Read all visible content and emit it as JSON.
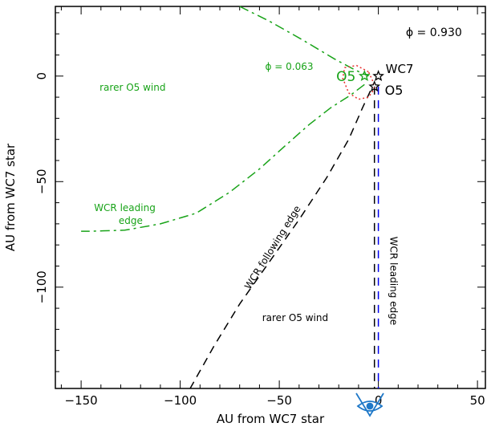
{
  "chart_data": {
    "type": "line",
    "title": "",
    "xlabel": "AU from WC7 star",
    "ylabel": "AU from WC7 star",
    "xlim": [
      -163,
      54
    ],
    "ylim": [
      -148,
      33
    ],
    "xticks": [
      -150,
      -100,
      -50,
      0,
      50
    ],
    "yticks": [
      0,
      -50,
      -100
    ],
    "tick_labels": {
      "x": [
        "−150",
        "−100",
        "−50",
        "0",
        "50"
      ],
      "y": [
        "0",
        "−50",
        "−100"
      ]
    },
    "grid": false,
    "series": [
      {
        "style": "dash-dot",
        "color": "#18a318",
        "points": [
          [
            -70,
            33
          ],
          [
            -55,
            26
          ],
          [
            -38,
            17
          ],
          [
            -22,
            8
          ],
          [
            -12,
            3
          ],
          [
            -5,
            0
          ]
        ]
      },
      {
        "style": "dash-dot",
        "color": "#18a318",
        "points": [
          [
            -7,
            -4
          ],
          [
            -14,
            -9
          ],
          [
            -24,
            -15
          ],
          [
            -35,
            -23
          ],
          [
            -47,
            -33
          ],
          [
            -60,
            -44
          ],
          [
            -75,
            -55
          ],
          [
            -92,
            -65
          ],
          [
            -110,
            -70
          ],
          [
            -128,
            -73
          ],
          [
            -145,
            -73.5
          ],
          [
            -150,
            -73.5
          ]
        ]
      },
      {
        "style": "dashed",
        "color": "#000000",
        "points": [
          [
            -4,
            -7
          ],
          [
            -8,
            -15
          ],
          [
            -15,
            -30
          ],
          [
            -26,
            -48
          ],
          [
            -40,
            -68
          ],
          [
            -55,
            -88
          ],
          [
            -70,
            -108
          ],
          [
            -83,
            -128
          ],
          [
            -95,
            -148
          ]
        ]
      },
      {
        "style": "dashed",
        "color": "#000000",
        "points": [
          [
            -2,
            -5
          ],
          [
            -2,
            -30
          ],
          [
            -2,
            -70
          ],
          [
            -2,
            -110
          ],
          [
            -2,
            -148
          ]
        ]
      },
      {
        "style": "dashed",
        "color": "#0000ee",
        "points": [
          [
            0,
            -5
          ],
          [
            0,
            -40
          ],
          [
            0,
            -80
          ],
          [
            0,
            -120
          ],
          [
            0,
            -148
          ]
        ]
      },
      {
        "style": "dotted",
        "color": "#e8302f",
        "points": [
          [
            -5,
            2
          ],
          [
            -11,
            5
          ],
          [
            -17,
            4
          ],
          [
            -18,
            -1
          ],
          [
            -15,
            -8
          ],
          [
            -10,
            -11
          ],
          [
            -5,
            -10
          ],
          [
            -2,
            -6
          ],
          [
            -3,
            -2
          ],
          [
            -5,
            2
          ]
        ]
      }
    ],
    "stars": [
      {
        "label": "WC7",
        "x": 0,
        "y": 0,
        "color": "#000000"
      },
      {
        "label": "O5",
        "x": -2,
        "y": -5,
        "color": "#000000"
      },
      {
        "label": "O5",
        "x": -7,
        "y": 0,
        "color": "#18a318"
      }
    ],
    "annotations": [
      {
        "text": "ϕ = 0.930",
        "x": 28,
        "y": 19,
        "color": "#000000"
      },
      {
        "text": "ϕ = 0.063",
        "x": -45,
        "y": 3,
        "color": "#18a318"
      },
      {
        "text": "rarer O5 wind",
        "x": -124,
        "y": -7,
        "color": "#18a318"
      },
      {
        "text": "WCR leading",
        "x": -128,
        "y": -64,
        "color": "#18a318"
      },
      {
        "text": "edge",
        "x": -125,
        "y": -70,
        "color": "#18a318"
      },
      {
        "text": "rarer O5 wind",
        "x": -42,
        "y": -116,
        "color": "#000000"
      },
      {
        "text": "WCR following edge",
        "x": -52,
        "y": -82,
        "color": "#000000"
      },
      {
        "text": "WCR leading edge",
        "x": 6,
        "y": -97,
        "color": "#000000"
      }
    ]
  }
}
